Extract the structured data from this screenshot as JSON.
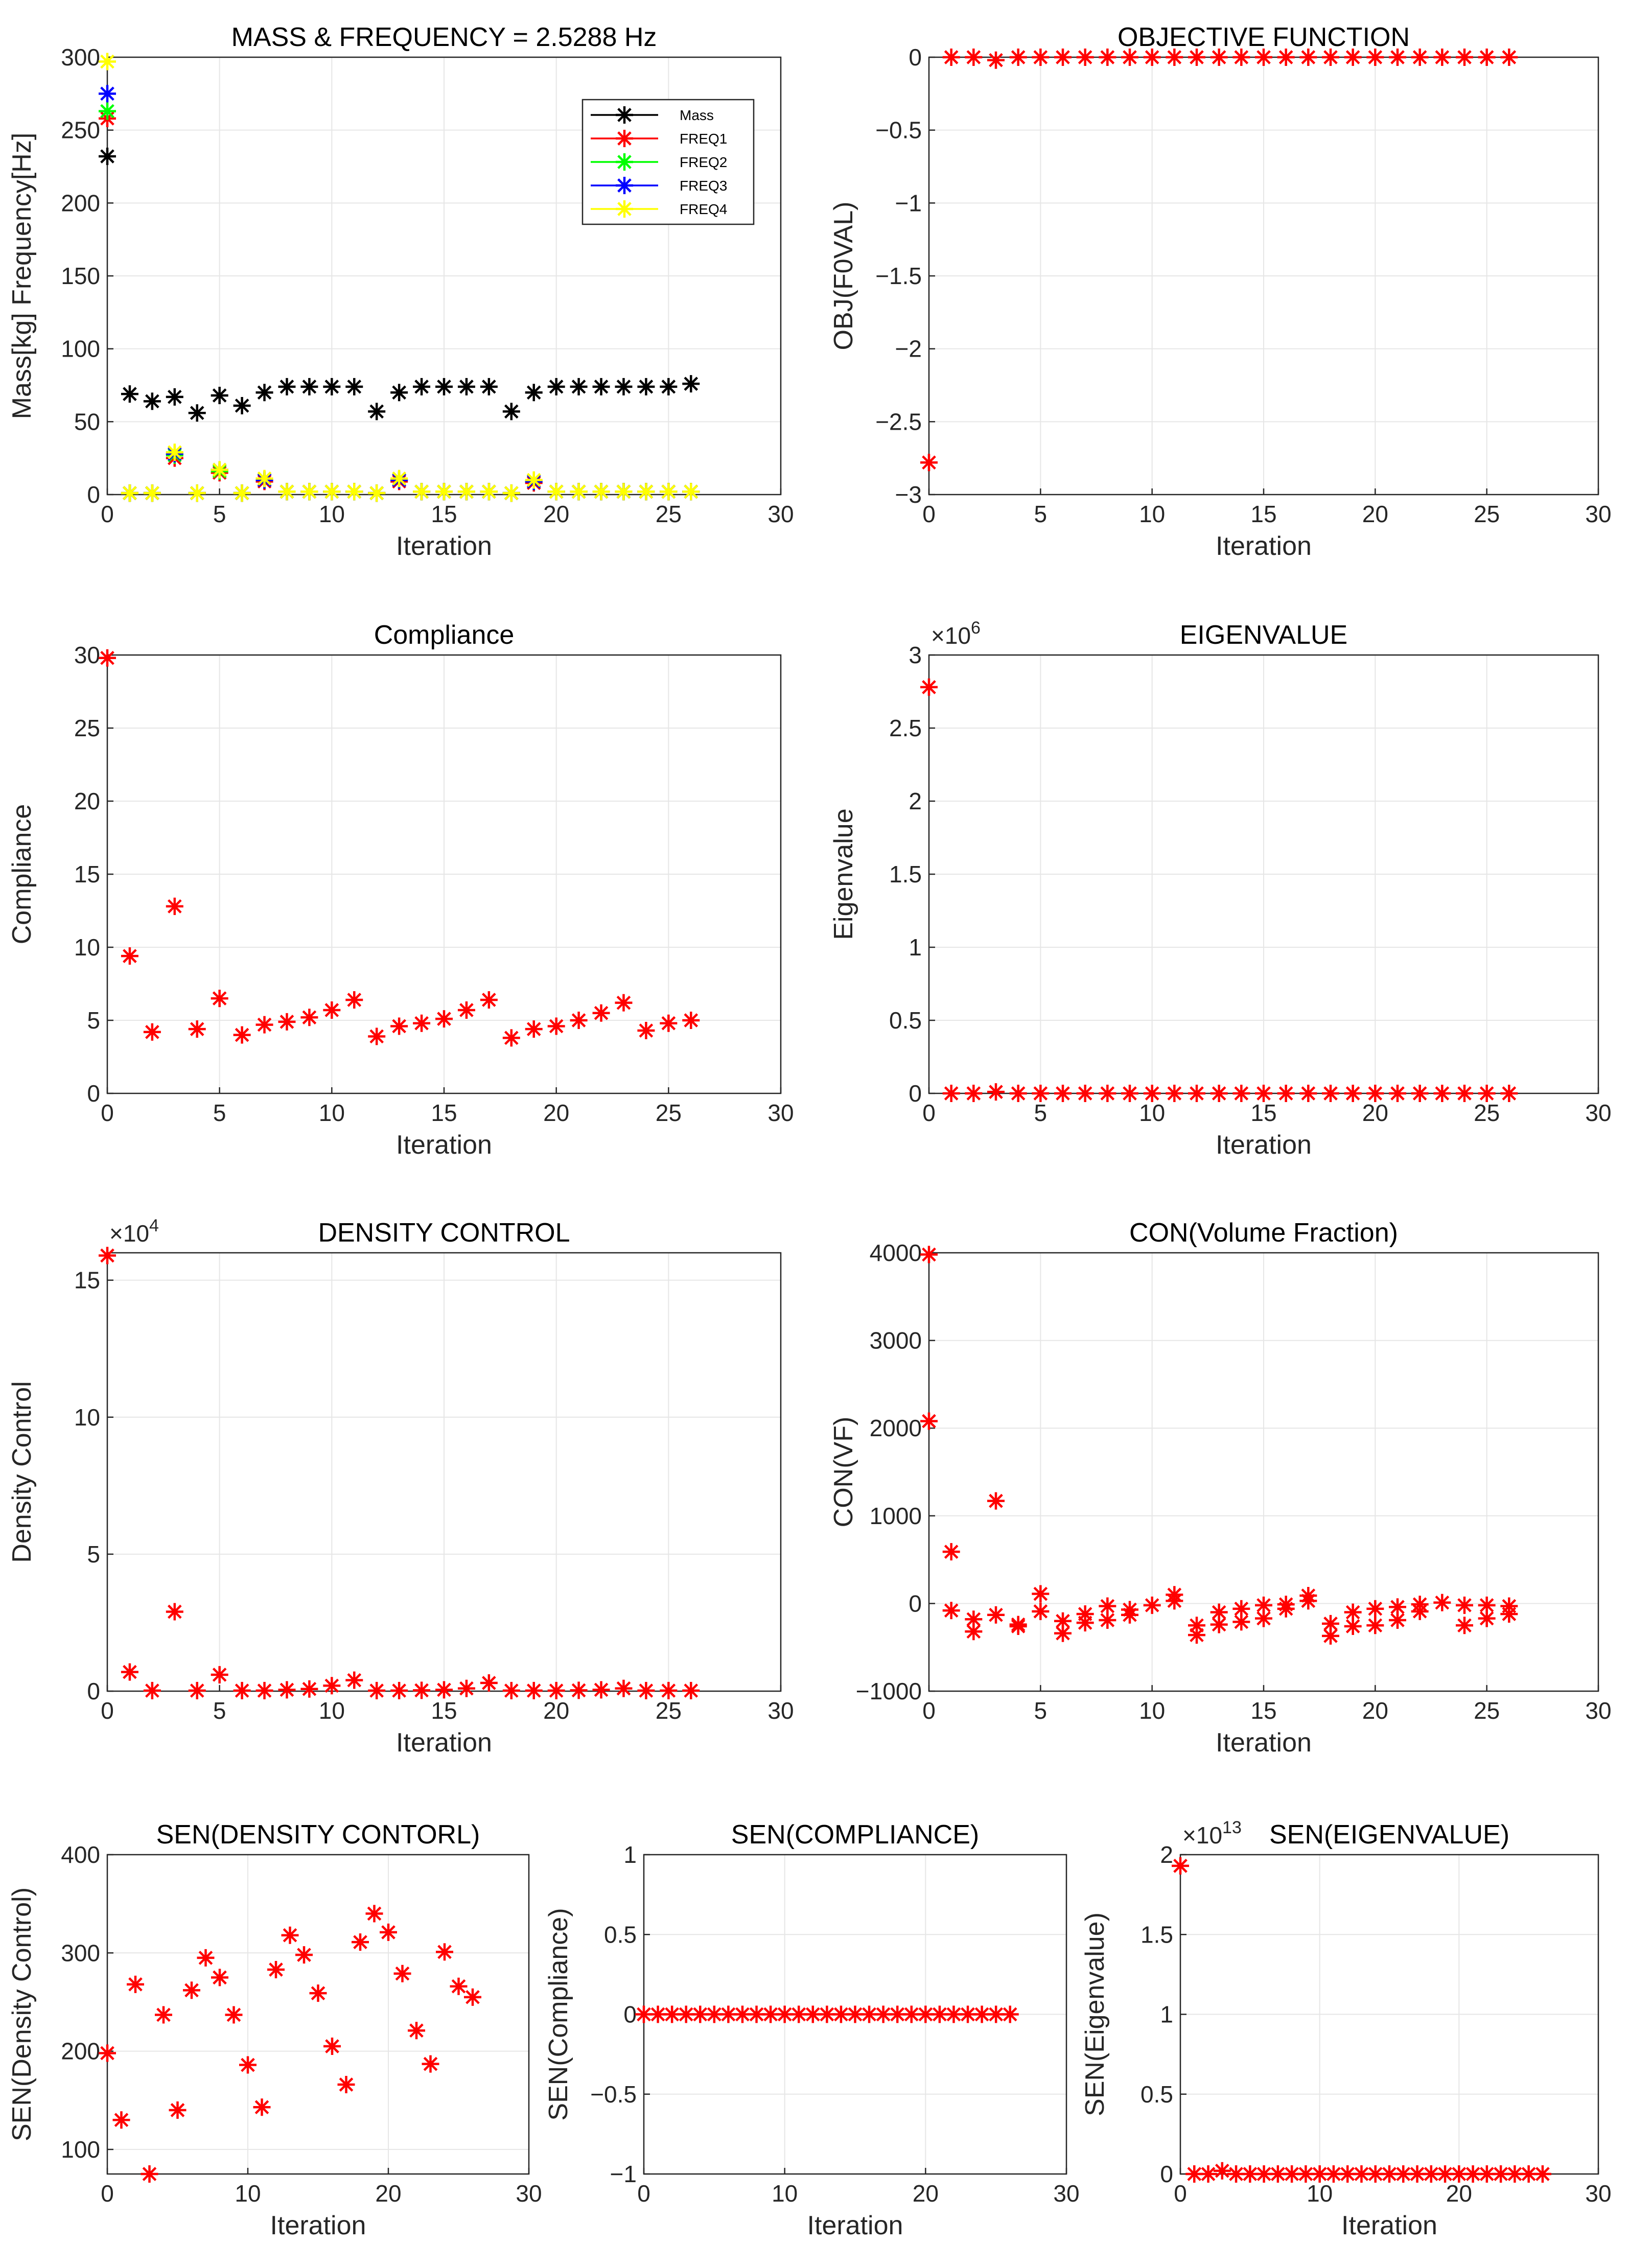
{
  "chart_data": [
    {
      "id": "mass",
      "type": "scatter",
      "title": "MASS & FREQUENCY = 2.5288 Hz",
      "xlabel": "Iteration",
      "ylabel": "Mass[kg] Frequency[Hz]",
      "xlim": [
        0,
        30
      ],
      "ylim": [
        0,
        300
      ],
      "xticks": [
        0,
        5,
        10,
        15,
        20,
        25,
        30
      ],
      "yticks": [
        0,
        50,
        100,
        150,
        200,
        250,
        300
      ],
      "grid": true,
      "legend_position": "top-right",
      "legend": [
        "Mass",
        "FREQ1",
        "FREQ2",
        "FREQ3",
        "FREQ4"
      ],
      "series": [
        {
          "name": "Mass",
          "color": "#000000",
          "x": [
            0,
            1,
            2,
            3,
            4,
            5,
            6,
            7,
            8,
            9,
            10,
            11,
            12,
            13,
            14,
            15,
            16,
            17,
            18,
            19,
            20,
            21,
            22,
            23,
            24,
            25,
            26
          ],
          "y": [
            232,
            69,
            64,
            67,
            56,
            68,
            61,
            70,
            74,
            74,
            74,
            74,
            57,
            70,
            74,
            74,
            74,
            74,
            57,
            70,
            74,
            74,
            74,
            74,
            74,
            74,
            76
          ]
        },
        {
          "name": "FREQ1",
          "color": "#ff0000",
          "x": [
            0,
            1,
            2,
            3,
            4,
            5,
            6,
            7,
            8,
            9,
            10,
            11,
            12,
            13,
            14,
            15,
            16,
            17,
            18,
            19,
            20,
            21,
            22,
            23,
            24,
            25,
            26
          ],
          "y": [
            258,
            1,
            1,
            25,
            1,
            15,
            1,
            9,
            2,
            2,
            2,
            2,
            1,
            9,
            2,
            2,
            2,
            2,
            1,
            8,
            2,
            2,
            2,
            2,
            2,
            2,
            2
          ]
        },
        {
          "name": "FREQ2",
          "color": "#00ff00",
          "x": [
            0,
            1,
            2,
            3,
            4,
            5,
            6,
            7,
            8,
            9,
            10,
            11,
            12,
            13,
            14,
            15,
            16,
            17,
            18,
            19,
            20,
            21,
            22,
            23,
            24,
            25,
            26
          ],
          "y": [
            263,
            1,
            1,
            27,
            1,
            16,
            1,
            10,
            2,
            2,
            2,
            2,
            1,
            10,
            2,
            2,
            2,
            2,
            1,
            9,
            2,
            2,
            2,
            2,
            2,
            2,
            2
          ]
        },
        {
          "name": "FREQ3",
          "color": "#0000ff",
          "x": [
            0,
            1,
            2,
            3,
            4,
            5,
            6,
            7,
            8,
            9,
            10,
            11,
            12,
            13,
            14,
            15,
            16,
            17,
            18,
            19,
            20,
            21,
            22,
            23,
            24,
            25,
            26
          ],
          "y": [
            275,
            1,
            1,
            28,
            1,
            17,
            1,
            10,
            2,
            2,
            2,
            2,
            1,
            10,
            2,
            2,
            2,
            2,
            1,
            9,
            2,
            2,
            2,
            2,
            2,
            2,
            2
          ]
        },
        {
          "name": "FREQ4",
          "color": "#ffff00",
          "x": [
            0,
            1,
            2,
            3,
            4,
            5,
            6,
            7,
            8,
            9,
            10,
            11,
            12,
            13,
            14,
            15,
            16,
            17,
            18,
            19,
            20,
            21,
            22,
            23,
            24,
            25,
            26
          ],
          "y": [
            297,
            1,
            1,
            29,
            1,
            17,
            1,
            11,
            2,
            2,
            2,
            2,
            1,
            11,
            2,
            2,
            2,
            2,
            1,
            10,
            2,
            2,
            2,
            2,
            2,
            2,
            2
          ]
        }
      ]
    },
    {
      "id": "obj",
      "type": "scatter",
      "title": "OBJECTIVE FUNCTION",
      "xlabel": "Iteration",
      "ylabel": "OBJ(F0VAL)",
      "xlim": [
        0,
        30
      ],
      "ylim": [
        -3,
        0
      ],
      "xticks": [
        0,
        5,
        10,
        15,
        20,
        25,
        30
      ],
      "yticks": [
        0,
        -0.5,
        -1,
        -1.5,
        -2,
        -2.5,
        -3
      ],
      "grid": true,
      "series": [
        {
          "name": "OBJ",
          "color": "#ff0000",
          "x": [
            0,
            1,
            2,
            3,
            4,
            5,
            6,
            7,
            8,
            9,
            10,
            11,
            12,
            13,
            14,
            15,
            16,
            17,
            18,
            19,
            20,
            21,
            22,
            23,
            24,
            25,
            26
          ],
          "y": [
            -2.78,
            0,
            0,
            -0.02,
            0,
            0,
            0,
            0,
            0,
            0,
            0,
            0,
            0,
            0,
            0,
            0,
            0,
            0,
            0,
            0,
            0,
            0,
            0,
            0,
            0,
            0,
            0
          ]
        }
      ]
    },
    {
      "id": "comp",
      "type": "scatter",
      "title": "Compliance",
      "xlabel": "Iteration",
      "ylabel": "Compliance",
      "xlim": [
        0,
        30
      ],
      "ylim": [
        0,
        30
      ],
      "xticks": [
        0,
        5,
        10,
        15,
        20,
        25,
        30
      ],
      "yticks": [
        0,
        5,
        10,
        15,
        20,
        25,
        30
      ],
      "grid": true,
      "series": [
        {
          "name": "Compliance",
          "color": "#ff0000",
          "x": [
            0,
            1,
            2,
            3,
            4,
            5,
            6,
            7,
            8,
            9,
            10,
            11,
            12,
            13,
            14,
            15,
            16,
            17,
            18,
            19,
            20,
            21,
            22,
            23,
            24,
            25,
            26
          ],
          "y": [
            29.8,
            9.4,
            4.2,
            12.8,
            4.4,
            6.5,
            4.0,
            4.7,
            4.9,
            5.2,
            5.7,
            6.4,
            3.9,
            4.6,
            4.8,
            5.1,
            5.7,
            6.4,
            3.8,
            4.4,
            4.6,
            5.0,
            5.5,
            6.2,
            4.3,
            4.8,
            5.0
          ]
        }
      ]
    },
    {
      "id": "eig",
      "type": "scatter",
      "title": "EIGENVALUE",
      "xlabel": "Iteration",
      "ylabel": "Eigenvalue",
      "exponent_base": "×10",
      "exponent_power": "6",
      "xlim": [
        0,
        30
      ],
      "ylim": [
        0,
        3
      ],
      "xticks": [
        0,
        5,
        10,
        15,
        20,
        25,
        30
      ],
      "yticks": [
        0,
        0.5,
        1,
        1.5,
        2,
        2.5,
        3
      ],
      "grid": true,
      "series": [
        {
          "name": "Eigenvalue",
          "color": "#ff0000",
          "x": [
            0,
            1,
            2,
            3,
            4,
            5,
            6,
            7,
            8,
            9,
            10,
            11,
            12,
            13,
            14,
            15,
            16,
            17,
            18,
            19,
            20,
            21,
            22,
            23,
            24,
            25,
            26
          ],
          "y": [
            2.78,
            0,
            0,
            0.01,
            0,
            0,
            0,
            0,
            0,
            0,
            0,
            0,
            0,
            0,
            0,
            0,
            0,
            0,
            0,
            0,
            0,
            0,
            0,
            0,
            0,
            0,
            0
          ]
        }
      ]
    },
    {
      "id": "dens",
      "type": "scatter",
      "title": "DENSITY CONTROL",
      "xlabel": "Iteration",
      "ylabel": "Density Control",
      "exponent_base": "×10",
      "exponent_power": "4",
      "xlim": [
        0,
        30
      ],
      "ylim": [
        0,
        16
      ],
      "xticks": [
        0,
        5,
        10,
        15,
        20,
        25,
        30
      ],
      "yticks": [
        0,
        5,
        10,
        15
      ],
      "grid": true,
      "series": [
        {
          "name": "Density Control",
          "color": "#ff0000",
          "x": [
            0,
            1,
            2,
            3,
            4,
            5,
            6,
            7,
            8,
            9,
            10,
            11,
            12,
            13,
            14,
            15,
            16,
            17,
            18,
            19,
            20,
            21,
            22,
            23,
            24,
            25,
            26
          ],
          "y": [
            15.9,
            0.7,
            0.02,
            2.9,
            0.02,
            0.6,
            0.02,
            0.02,
            0.05,
            0.08,
            0.2,
            0.4,
            0.02,
            0.02,
            0.03,
            0.05,
            0.1,
            0.3,
            0.02,
            0.02,
            0.02,
            0.03,
            0.05,
            0.1,
            0.02,
            0.02,
            0.02
          ]
        }
      ]
    },
    {
      "id": "con",
      "type": "scatter",
      "title": "CON(Volume Fraction)",
      "xlabel": "Iteration",
      "ylabel": "CON(VF)",
      "xlim": [
        0,
        30
      ],
      "ylim": [
        -1000,
        4000
      ],
      "xticks": [
        0,
        5,
        10,
        15,
        20,
        25,
        30
      ],
      "yticks": [
        -1000,
        0,
        1000,
        2000,
        3000,
        4000
      ],
      "grid": true,
      "series": [
        {
          "name": "CON(VF)",
          "color": "#ff0000",
          "x": [
            0,
            0,
            1,
            1,
            2,
            2,
            3,
            3,
            4,
            4,
            5,
            5,
            6,
            6,
            7,
            7,
            8,
            8,
            9,
            9,
            10,
            11,
            11,
            12,
            12,
            13,
            13,
            14,
            14,
            15,
            15,
            16,
            16,
            17,
            17,
            18,
            18,
            19,
            19,
            20,
            20,
            21,
            21,
            22,
            22,
            23,
            24,
            24,
            25,
            25,
            26,
            26
          ],
          "y": [
            3980,
            2080,
            590,
            -80,
            -180,
            -320,
            1170,
            -130,
            -240,
            -260,
            110,
            -90,
            -200,
            -340,
            -120,
            -220,
            -30,
            -190,
            -70,
            -130,
            -20,
            30,
            100,
            -250,
            -360,
            -100,
            -240,
            -60,
            -210,
            -20,
            -170,
            -10,
            -60,
            30,
            90,
            -230,
            -370,
            -100,
            -260,
            -60,
            -250,
            -40,
            -190,
            -10,
            -90,
            10,
            -20,
            -250,
            -20,
            -170,
            -30,
            -120
          ]
        }
      ]
    },
    {
      "id": "sdens",
      "type": "scatter",
      "title": "SEN(DENSITY CONTORL)",
      "xlabel": "Iteration",
      "ylabel": "SEN(Density Control)",
      "xlim": [
        0,
        30
      ],
      "ylim": [
        75,
        400
      ],
      "xticks": [
        0,
        10,
        20,
        30
      ],
      "yticks": [
        100,
        200,
        300,
        400
      ],
      "grid": true,
      "series": [
        {
          "name": "SEN(Density Control)",
          "color": "#ff0000",
          "x": [
            0,
            1,
            2,
            3,
            4,
            5,
            6,
            7,
            8,
            9,
            10,
            11,
            12,
            13,
            14,
            15,
            16,
            17,
            18,
            19,
            20,
            21,
            22,
            23,
            24,
            25,
            26
          ],
          "y": [
            198,
            130,
            268,
            75,
            237,
            140,
            262,
            295,
            275,
            237,
            186,
            143,
            283,
            318,
            298,
            259,
            205,
            166,
            311,
            340,
            321,
            279,
            221,
            187,
            301,
            266,
            255
          ]
        }
      ]
    },
    {
      "id": "scomp",
      "type": "scatter",
      "title": "SEN(COMPLIANCE)",
      "xlabel": "Iteration",
      "ylabel": "SEN(Compliance)",
      "xlim": [
        0,
        30
      ],
      "ylim": [
        -1,
        1
      ],
      "xticks": [
        0,
        10,
        20,
        30
      ],
      "yticks": [
        1,
        0.5,
        0,
        -0.5,
        -1
      ],
      "grid": true,
      "series": [
        {
          "name": "SEN(Compliance)",
          "color": "#ff0000",
          "x": [
            0,
            1,
            2,
            3,
            4,
            5,
            6,
            7,
            8,
            9,
            10,
            11,
            12,
            13,
            14,
            15,
            16,
            17,
            18,
            19,
            20,
            21,
            22,
            23,
            24,
            25,
            26
          ],
          "y": [
            0,
            0,
            0,
            0,
            0,
            0,
            0,
            0,
            0,
            0,
            0,
            0,
            0,
            0,
            0,
            0,
            0,
            0,
            0,
            0,
            0,
            0,
            0,
            0,
            0,
            0,
            0
          ]
        }
      ]
    },
    {
      "id": "seig",
      "type": "scatter",
      "title": "SEN(EIGENVALUE)",
      "xlabel": "Iteration",
      "ylabel": "SEN(Eigenvalue)",
      "exponent_base": "×10",
      "exponent_power": "13",
      "xlim": [
        0,
        30
      ],
      "ylim": [
        0,
        2
      ],
      "xticks": [
        0,
        10,
        20,
        30
      ],
      "yticks": [
        2,
        1.5,
        1,
        0.5,
        0
      ],
      "grid": true,
      "series": [
        {
          "name": "SEN(Eigenvalue)",
          "color": "#ff0000",
          "x": [
            0,
            1,
            2,
            3,
            4,
            5,
            6,
            7,
            8,
            9,
            10,
            11,
            12,
            13,
            14,
            15,
            16,
            17,
            18,
            19,
            20,
            21,
            22,
            23,
            24,
            25,
            26
          ],
          "y": [
            1.93,
            0,
            0,
            0.02,
            0,
            0,
            0,
            0,
            0,
            0,
            0,
            0,
            0,
            0,
            0,
            0,
            0,
            0,
            0,
            0,
            0,
            0,
            0,
            0,
            0,
            0,
            0
          ]
        }
      ]
    }
  ]
}
